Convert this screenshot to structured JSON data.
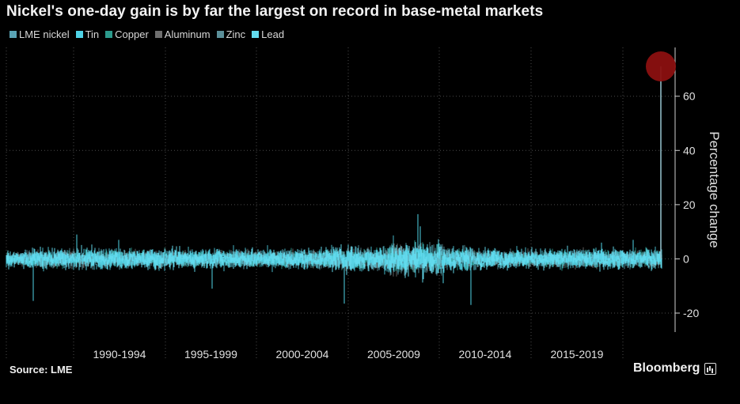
{
  "title": "Nickel's one-day gain is by far the largest on record in base-metal markets",
  "source": "Source: LME",
  "brand": "Bloomberg",
  "colors": {
    "background": "#000000",
    "axis": "#cfcfcf",
    "grid": "#4a4a4a",
    "highlight": "#8b1010"
  },
  "chart_data": {
    "type": "line",
    "ylabel": "Percentage change",
    "ylim": [
      -27,
      78
    ],
    "yticks": [
      -20,
      0,
      20,
      40,
      60
    ],
    "y_axis_side": "right",
    "grid": "dotted",
    "legend_placement": "top-left",
    "categories": [
      "1990-1994",
      "1995-1999",
      "2000-2004",
      "2005-2009",
      "2010-2014",
      "2015-2019"
    ],
    "series": [
      {
        "name": "LME nickel",
        "color": "#5aa3b4"
      },
      {
        "name": "Tin",
        "color": "#4fd3e6"
      },
      {
        "name": "Copper",
        "color": "#2c9a8c"
      },
      {
        "name": "Aluminum",
        "color": "#6e6e6e"
      },
      {
        "name": "Zinc",
        "color": "#5b8f99"
      },
      {
        "name": "Lead",
        "color": "#63dbee"
      }
    ],
    "highlight": {
      "series": "LME nickel",
      "date": "2022-03-08",
      "value": 71
    }
  }
}
